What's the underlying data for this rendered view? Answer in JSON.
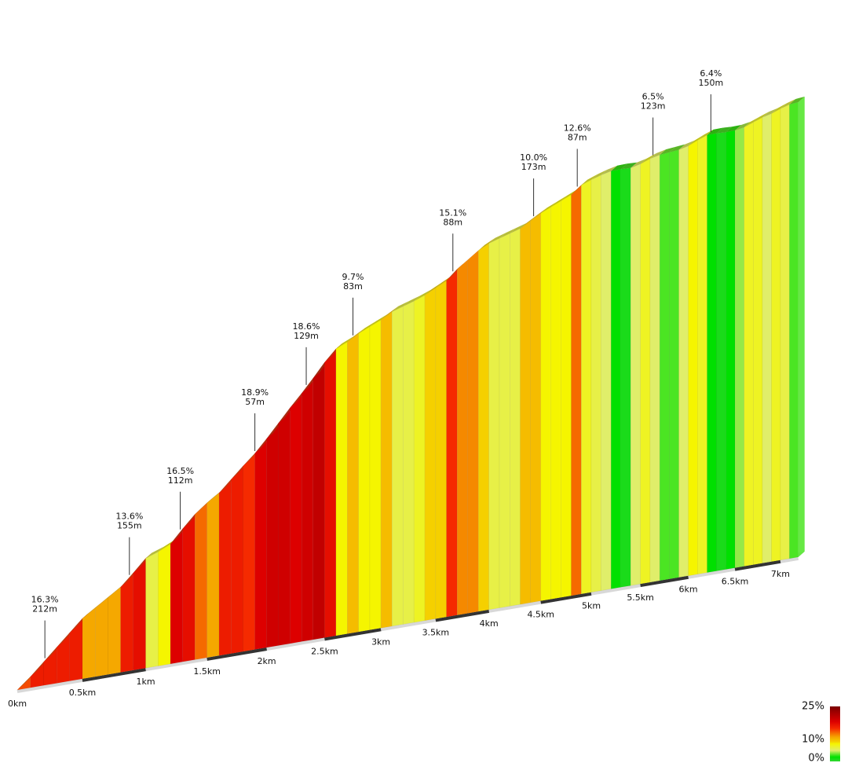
{
  "chart_data": {
    "type": "elevation-profile",
    "bins": [
      0,
      0.1,
      0.2,
      0.3,
      0.4,
      0.5,
      0.6,
      0.7,
      0.8,
      0.9,
      1,
      1.1,
      1.2,
      1.3,
      1.4,
      1.5,
      1.6,
      1.7,
      1.8,
      1.9,
      2,
      2.1,
      2.2,
      2.3,
      2.4,
      2.5,
      2.6,
      2.7,
      2.8,
      2.9,
      3,
      3.1,
      3.2,
      3.3,
      3.4,
      3.5,
      3.6,
      3.7,
      3.8,
      3.9,
      4,
      4.1,
      4.2,
      4.3,
      4.4,
      4.5,
      4.6,
      4.7,
      4.8,
      4.9,
      5,
      5.1,
      5.2,
      5.3,
      5.4,
      5.5,
      5.6,
      5.7,
      5.8,
      5.9,
      6,
      6.1,
      6.2,
      6.3,
      6.4,
      6.5,
      6.6,
      6.7,
      6.8,
      6.9,
      7,
      7.1,
      7.2
    ],
    "gradients": [
      14,
      16,
      16,
      16,
      16,
      11,
      11,
      11,
      16,
      17,
      6,
      8,
      18,
      17,
      13,
      11,
      16,
      16,
      15,
      18,
      19,
      19,
      18,
      19,
      20,
      17,
      8,
      10,
      8,
      8,
      10,
      6,
      6,
      7,
      9,
      9,
      15,
      12,
      12,
      9,
      6,
      6,
      6,
      10,
      10,
      8,
      8,
      8,
      13,
      7,
      6,
      5,
      2,
      1,
      5,
      7,
      5,
      3,
      3,
      5,
      8,
      7,
      2,
      1,
      2,
      4,
      7,
      7,
      5,
      7,
      6,
      3
    ],
    "xticks": [
      {
        "value": 0,
        "label": "0km"
      },
      {
        "value": 0.5,
        "label": "0.5km"
      },
      {
        "value": 1,
        "label": "1km"
      },
      {
        "value": 1.5,
        "label": "1.5km"
      },
      {
        "value": 2,
        "label": "2km"
      },
      {
        "value": 2.5,
        "label": "2.5km"
      },
      {
        "value": 3,
        "label": "3km"
      },
      {
        "value": 3.5,
        "label": "3.5km"
      },
      {
        "value": 4,
        "label": "4km"
      },
      {
        "value": 4.5,
        "label": "4.5km"
      },
      {
        "value": 5,
        "label": "5km"
      },
      {
        "value": 5.5,
        "label": "5.5km"
      },
      {
        "value": 6,
        "label": "6km"
      },
      {
        "value": 6.5,
        "label": "6.5km"
      },
      {
        "value": 7,
        "label": "7km"
      }
    ],
    "annotations": [
      {
        "x": 0.21,
        "grade": "16.3%",
        "length": "212m"
      },
      {
        "x": 0.87,
        "grade": "13.6%",
        "length": "155m"
      },
      {
        "x": 1.28,
        "grade": "16.5%",
        "length": "112m"
      },
      {
        "x": 1.9,
        "grade": "18.9%",
        "length": "57m"
      },
      {
        "x": 2.34,
        "grade": "18.6%",
        "length": "129m"
      },
      {
        "x": 2.75,
        "grade": "9.7%",
        "length": "83m"
      },
      {
        "x": 3.66,
        "grade": "15.1%",
        "length": "88m"
      },
      {
        "x": 4.43,
        "grade": "10.0%",
        "length": "173m"
      },
      {
        "x": 4.86,
        "grade": "12.6%",
        "length": "87m"
      },
      {
        "x": 5.63,
        "grade": "6.5%",
        "length": "123m"
      },
      {
        "x": 6.24,
        "grade": "6.4%",
        "length": "150m"
      }
    ],
    "colorscale": [
      [
        0,
        "#33d633"
      ],
      [
        2,
        "#00e000"
      ],
      [
        5,
        "#e0ee6a"
      ],
      [
        8,
        "#f5f500"
      ],
      [
        9,
        "#f5d000"
      ],
      [
        11,
        "#f5a800"
      ],
      [
        13,
        "#f56a00"
      ],
      [
        15,
        "#f52a00"
      ],
      [
        18,
        "#dd0000"
      ],
      [
        25,
        "#7a0000"
      ]
    ],
    "legend_ticks": [
      {
        "value": 25,
        "label": "25%"
      },
      {
        "value": 10,
        "label": "10%"
      },
      {
        "value": 0,
        "label": "0%"
      }
    ]
  }
}
